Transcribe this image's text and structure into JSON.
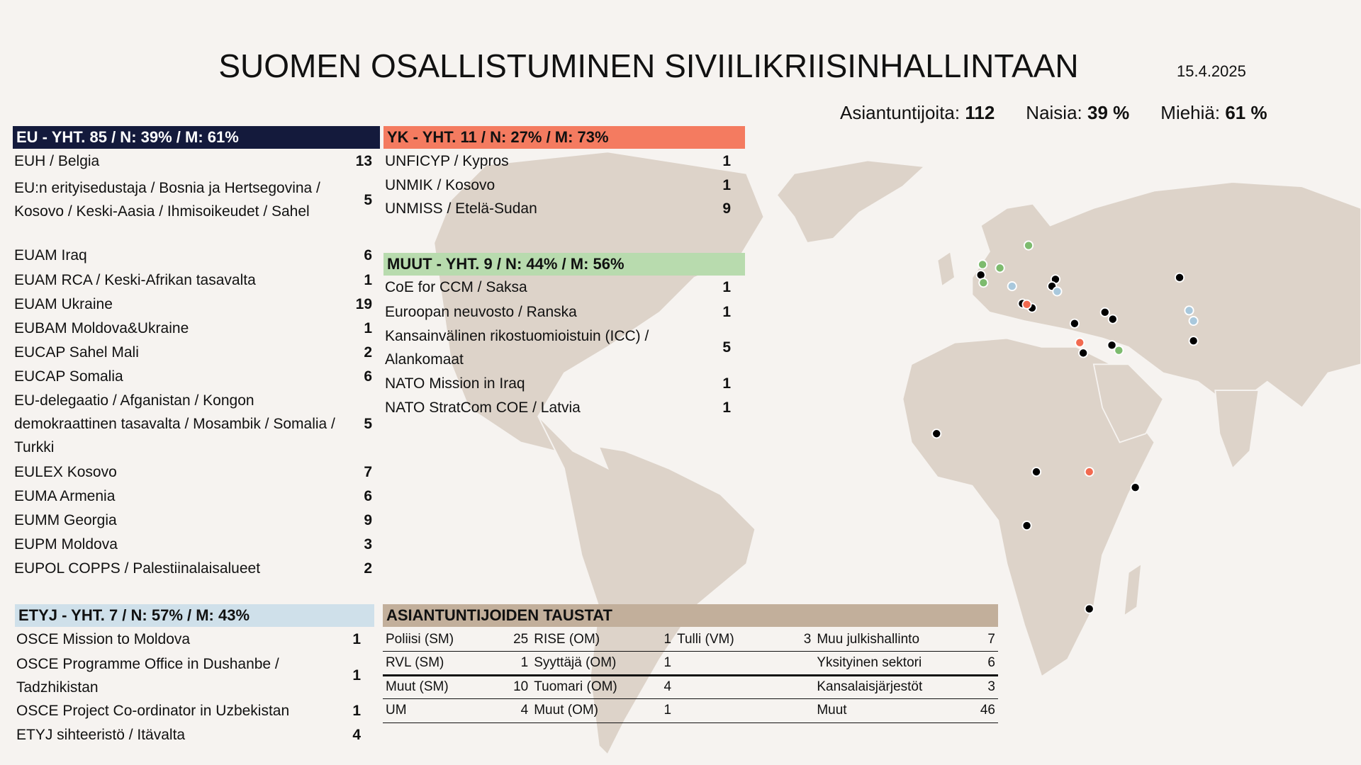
{
  "header": {
    "title": "SUOMEN OSALLISTUMINEN SIVIILIKRIISINHALLINTAAN",
    "date": "15.4.2025",
    "stats": {
      "experts_label": "Asiantuntijoita:",
      "experts_value": "112",
      "women_label": "Naisia:",
      "women_value": "39 %",
      "men_label": "Miehiä:",
      "men_value": "61 %"
    }
  },
  "colors": {
    "eu": "#141a3c",
    "yk": "#f47b60",
    "muut": "#b8dbae",
    "etyj": "#cfe0ea",
    "taustat": "#c2af9b",
    "map": "#ddd3c9"
  },
  "eu": {
    "title": "EU - YHT. 85 / N: 39% / M: 61%",
    "items": [
      {
        "label": "EUH / Belgia",
        "value": "13"
      },
      {
        "label": "EU:n erityisedustaja / Bosnia ja Hertsegovina / Kosovo / Keski-Aasia / Ihmisoikeudet / Sahel",
        "value": "5"
      },
      {
        "label": "EUAM Iraq",
        "value": "6"
      },
      {
        "label": "EUAM RCA / Keski-Afrikan tasavalta",
        "value": "1"
      },
      {
        "label": "EUAM Ukraine",
        "value": "19"
      },
      {
        "label": "EUBAM Moldova&Ukraine",
        "value": "1"
      },
      {
        "label": "EUCAP Sahel Mali",
        "value": "2"
      },
      {
        "label": "EUCAP Somalia",
        "value": "6"
      },
      {
        "label": "EU-delegaatio / Afganistan / Kongon demokraattinen tasavalta / Mosambik / Somalia / Turkki",
        "value": "5"
      },
      {
        "label": "EULEX Kosovo",
        "value": "7"
      },
      {
        "label": "EUMA Armenia",
        "value": "6"
      },
      {
        "label": "EUMM Georgia",
        "value": "9"
      },
      {
        "label": "EUPM Moldova",
        "value": "3"
      },
      {
        "label": "EUPOL COPPS / Palestiinalaisalueet",
        "value": "2"
      }
    ]
  },
  "yk": {
    "title": "YK - YHT. 11 / N: 27% / M: 73%",
    "items": [
      {
        "label": "UNFICYP / Kypros",
        "value": "1"
      },
      {
        "label": "UNMIK / Kosovo",
        "value": "1"
      },
      {
        "label": "UNMISS / Etelä-Sudan",
        "value": "9"
      }
    ]
  },
  "muut": {
    "title": "MUUT - YHT. 9 / N: 44% / M: 56%",
    "items": [
      {
        "label": "CoE for CCM / Saksa",
        "value": "1"
      },
      {
        "label": "Euroopan neuvosto / Ranska",
        "value": "1"
      },
      {
        "label": "Kansainvälinen rikostuomioistuin (ICC) / Alankomaat",
        "value": "5"
      },
      {
        "label": "NATO Mission in Iraq",
        "value": "1"
      },
      {
        "label": "NATO StratCom COE / Latvia",
        "value": "1"
      }
    ]
  },
  "etyj": {
    "title": "ETYJ - YHT. 7 / N: 57% / M: 43%",
    "items": [
      {
        "label": "OSCE Mission to Moldova",
        "value": "1"
      },
      {
        "label": "OSCE Programme Office in Dushanbe / Tadzhikistan",
        "value": "1"
      },
      {
        "label": "OSCE Project Co-ordinator in Uzbekistan",
        "value": "1"
      },
      {
        "label": "ETYJ sihteeristö / Itävalta",
        "value": "4"
      }
    ]
  },
  "taustat": {
    "title": "ASIANTUNTIJOIDEN TAUSTAT",
    "rows": [
      [
        "Poliisi (SM)",
        "25",
        "RISE (OM)",
        "1",
        "Tulli (VM)",
        "3",
        "Muu julkishallinto",
        "7"
      ],
      [
        "RVL (SM)",
        "1",
        "Syyttäjä (OM)",
        "1",
        "",
        "",
        "Yksityinen sektori",
        "6"
      ],
      [
        "Muut (SM)",
        "10",
        "Tuomari (OM)",
        "4",
        "",
        "",
        "Kansalaisjärjestöt",
        "3"
      ],
      [
        "UM",
        "4",
        "Muut (OM)",
        "1",
        "",
        "",
        "Muut",
        "46"
      ]
    ]
  }
}
